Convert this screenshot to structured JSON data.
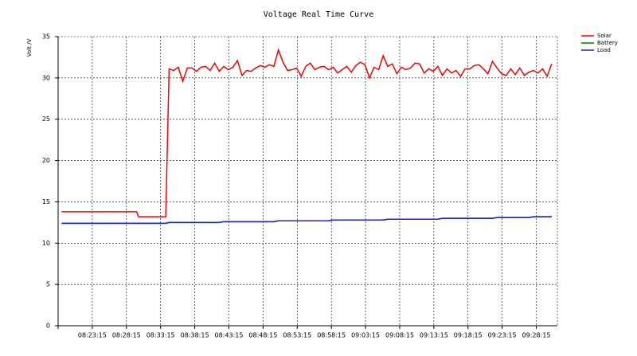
{
  "chart_data": {
    "type": "line",
    "title": "Voltage Real Time Curve",
    "y_label": "Volt /V",
    "x": [
      "08:18:45",
      "08:29:45",
      "08:30:00",
      "08:34:00",
      "08:34:30",
      "08:35:10",
      "08:35:50",
      "08:36:30",
      "08:37:10",
      "08:37:50",
      "08:38:30",
      "08:39:10",
      "08:39:50",
      "08:40:30",
      "08:41:10",
      "08:41:50",
      "08:42:30",
      "08:43:10",
      "08:43:50",
      "08:44:30",
      "08:45:10",
      "08:45:50",
      "08:46:30",
      "08:47:10",
      "08:47:50",
      "08:48:30",
      "08:49:10",
      "08:49:50",
      "08:50:30",
      "08:51:10",
      "08:51:50",
      "08:52:30",
      "08:53:10",
      "08:53:50",
      "08:54:30",
      "08:55:10",
      "08:55:50",
      "08:56:30",
      "08:57:10",
      "08:57:50",
      "08:58:30",
      "08:59:10",
      "08:59:50",
      "09:00:30",
      "09:01:10",
      "09:01:50",
      "09:02:30",
      "09:03:10",
      "09:03:50",
      "09:04:30",
      "09:05:10",
      "09:05:50",
      "09:06:30",
      "09:07:10",
      "09:07:50",
      "09:08:30",
      "09:09:10",
      "09:09:50",
      "09:10:30",
      "09:11:10",
      "09:11:50",
      "09:12:30",
      "09:13:10",
      "09:13:50",
      "09:14:30",
      "09:15:10",
      "09:15:50",
      "09:16:30",
      "09:17:10",
      "09:17:50",
      "09:18:30",
      "09:19:10",
      "09:19:50",
      "09:20:30",
      "09:21:10",
      "09:21:50",
      "09:22:30",
      "09:23:10",
      "09:23:50",
      "09:24:30",
      "09:25:10",
      "09:25:50",
      "09:26:30",
      "09:27:10",
      "09:27:50",
      "09:28:30",
      "09:29:10",
      "09:29:50",
      "09:30:30"
    ],
    "series": [
      {
        "name": "Solar",
        "color": "#ff0000",
        "values": [
          13.8,
          13.8,
          13.2,
          13.2,
          31.1,
          30.9,
          31.3,
          29.6,
          31.2,
          31.2,
          30.8,
          31.3,
          31.4,
          30.9,
          31.8,
          30.8,
          31.4,
          31.0,
          31.3,
          32.1,
          30.3,
          30.9,
          30.8,
          31.2,
          31.5,
          31.3,
          31.6,
          31.4,
          33.4,
          31.9,
          30.9,
          31.0,
          31.2,
          30.2,
          31.4,
          31.8,
          31.0,
          31.3,
          31.4,
          31.0,
          31.3,
          30.6,
          31.0,
          31.4,
          30.7,
          31.5,
          31.9,
          31.6,
          30.0,
          31.3,
          31.0,
          32.7,
          31.4,
          31.7,
          30.5,
          31.3,
          31.0,
          31.2,
          31.8,
          31.7,
          30.6,
          31.1,
          30.8,
          31.4,
          30.3,
          31.1,
          30.6,
          30.9,
          30.2,
          31.1,
          31.1,
          31.5,
          31.6,
          31.1,
          30.5,
          32.0,
          31.2,
          30.5,
          30.3,
          31.1,
          30.4,
          31.2,
          30.3,
          30.7,
          30.9,
          30.6,
          31.1,
          30.2,
          31.7
        ]
      },
      {
        "name": "Battery",
        "color": "#008000",
        "values": [
          12.4,
          12.4,
          12.4,
          12.4,
          12.5,
          12.5,
          12.5,
          12.5,
          12.5,
          12.5,
          12.5,
          12.5,
          12.5,
          12.5,
          12.5,
          12.5,
          12.6,
          12.6,
          12.6,
          12.6,
          12.6,
          12.6,
          12.6,
          12.6,
          12.6,
          12.6,
          12.6,
          12.6,
          12.7,
          12.7,
          12.7,
          12.7,
          12.7,
          12.7,
          12.7,
          12.7,
          12.7,
          12.7,
          12.7,
          12.7,
          12.8,
          12.8,
          12.8,
          12.8,
          12.8,
          12.8,
          12.8,
          12.8,
          12.8,
          12.8,
          12.8,
          12.8,
          12.9,
          12.9,
          12.9,
          12.9,
          12.9,
          12.9,
          12.9,
          12.9,
          12.9,
          12.9,
          12.9,
          12.9,
          13.0,
          13.0,
          13.0,
          13.0,
          13.0,
          13.0,
          13.0,
          13.0,
          13.0,
          13.0,
          13.0,
          13.0,
          13.1,
          13.1,
          13.1,
          13.1,
          13.1,
          13.1,
          13.1,
          13.1,
          13.2,
          13.2,
          13.2,
          13.2,
          13.2
        ]
      },
      {
        "name": "Load",
        "color": "#1f1fd6",
        "values": [
          12.4,
          12.4,
          12.4,
          12.4,
          12.5,
          12.5,
          12.5,
          12.5,
          12.5,
          12.5,
          12.5,
          12.5,
          12.5,
          12.5,
          12.5,
          12.5,
          12.6,
          12.6,
          12.6,
          12.6,
          12.6,
          12.6,
          12.6,
          12.6,
          12.6,
          12.6,
          12.6,
          12.6,
          12.7,
          12.7,
          12.7,
          12.7,
          12.7,
          12.7,
          12.7,
          12.7,
          12.7,
          12.7,
          12.7,
          12.7,
          12.8,
          12.8,
          12.8,
          12.8,
          12.8,
          12.8,
          12.8,
          12.8,
          12.8,
          12.8,
          12.8,
          12.8,
          12.9,
          12.9,
          12.9,
          12.9,
          12.9,
          12.9,
          12.9,
          12.9,
          12.9,
          12.9,
          12.9,
          12.9,
          13.0,
          13.0,
          13.0,
          13.0,
          13.0,
          13.0,
          13.0,
          13.0,
          13.0,
          13.0,
          13.0,
          13.0,
          13.1,
          13.1,
          13.1,
          13.1,
          13.1,
          13.1,
          13.1,
          13.1,
          13.2,
          13.2,
          13.2,
          13.2,
          13.2
        ]
      }
    ],
    "xlim": [
      "08:18:15",
      "09:31:20"
    ],
    "xticks": [
      "08:23:15",
      "08:28:15",
      "08:33:15",
      "08:38:15",
      "08:43:15",
      "08:48:15",
      "08:53:15",
      "08:58:15",
      "09:03:15",
      "09:08:15",
      "09:13:15",
      "09:18:15",
      "09:23:15",
      "09:28:15"
    ],
    "ylim": [
      0,
      35
    ],
    "yticks": [
      0,
      5,
      10,
      15,
      20,
      25,
      30,
      35
    ],
    "grid": true,
    "legend": "top-right"
  }
}
